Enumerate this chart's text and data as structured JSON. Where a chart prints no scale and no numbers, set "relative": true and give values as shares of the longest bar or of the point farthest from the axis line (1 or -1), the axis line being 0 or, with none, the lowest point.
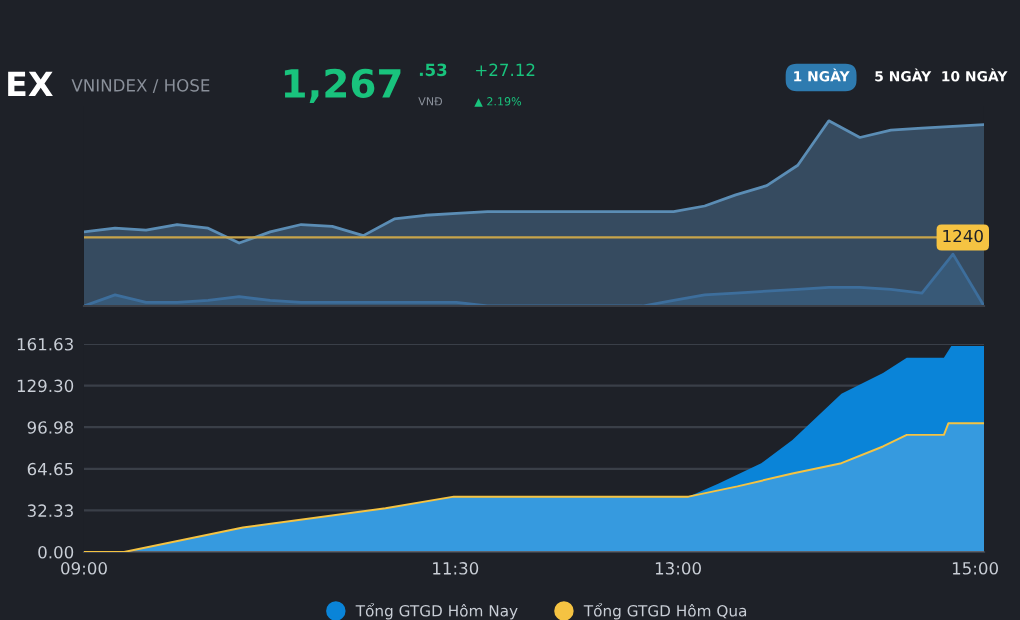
{
  "chart_data": [
    {
      "type": "other",
      "annotations": [
        "EX",
        "VNINDEX / HOSE",
        "1,267",
        ".53",
        "VNĐ",
        "+27.12",
        "▲ 2.19%",
        "1 NGÀY",
        "5 NGÀY",
        "10 NGÀY"
      ]
    },
    {
      "type": "line",
      "relative": true,
      "tick_labels": false,
      "grid": false,
      "ref_lines": [
        {
          "axis": "y",
          "value": 0.37,
          "color": "#c8a44a"
        }
      ],
      "annotations": [
        "1240"
      ],
      "categories": [
        null,
        null,
        null,
        null,
        null,
        null,
        null,
        null,
        null,
        null,
        null,
        null,
        null,
        null,
        null,
        null,
        null,
        null,
        null,
        null,
        null,
        null,
        null,
        null,
        null,
        null,
        null,
        null,
        null,
        null
      ],
      "series": [
        {
          "type": "area",
          "color": "#5b8db5",
          "values": [
            0.4,
            0.42,
            0.41,
            0.44,
            0.42,
            0.34,
            0.4,
            0.44,
            0.43,
            0.38,
            0.47,
            0.49,
            0.5,
            0.51,
            0.51,
            0.51,
            0.51,
            0.51,
            0.51,
            0.51,
            0.54,
            0.6,
            0.65,
            0.76,
            1.0,
            0.91,
            0.95,
            0.96,
            0.97,
            0.98
          ]
        },
        {
          "type": "area",
          "color": "#3d6e9c",
          "values": [
            0,
            0.06,
            0.02,
            0.02,
            0.03,
            0.05,
            0.03,
            0.02,
            0.02,
            0.02,
            0.02,
            0.02,
            0.02,
            0,
            0,
            0,
            0,
            0,
            0,
            0.03,
            0.06,
            0.07,
            0.08,
            0.09,
            0.1,
            0.1,
            0.09,
            0.07,
            0.28,
            0
          ]
        }
      ]
    },
    {
      "type": "area",
      "legend": "bottom",
      "grid": "y",
      "xlim": [
        9,
        15.06
      ],
      "ylim": [
        0,
        161.63
      ],
      "xticks": [
        {
          "value": 9,
          "label": "09:00"
        },
        {
          "value": 11.5,
          "label": "11:30"
        },
        {
          "value": 13,
          "label": "13:00"
        },
        {
          "value": 15,
          "label": "15:00"
        }
      ],
      "yticks": [
        {
          "value": 0,
          "label": "0.00"
        },
        32.33,
        64.65,
        96.98,
        {
          "value": 129.3,
          "label": "129.30"
        },
        161.63
      ],
      "series": [
        {
          "name": "Tổng GTGD Hôm Nay",
          "color": "#0a84d8",
          "x": [
            9,
            9.27,
            10.07,
            11.03,
            11.49,
            13.07,
            13.27,
            13.56,
            13.77,
            14.1,
            14.38,
            14.54,
            14.79,
            14.84,
            15.06
          ],
          "values": [
            0,
            0,
            19,
            34,
            43,
            43,
            53,
            69,
            87,
            123,
            139,
            151,
            151,
            160,
            160
          ]
        },
        {
          "name": "Tổng GTGD Hôm Qua",
          "color": "#f5c342",
          "x": [
            9,
            9.27,
            10.07,
            11.03,
            11.49,
            13.07,
            13.4,
            13.77,
            14.1,
            14.38,
            14.54,
            14.79,
            14.82,
            15.06
          ],
          "values": [
            0,
            0,
            19,
            34,
            43,
            43,
            51,
            61,
            69,
            82,
            91,
            91,
            100,
            100
          ]
        }
      ]
    }
  ]
}
